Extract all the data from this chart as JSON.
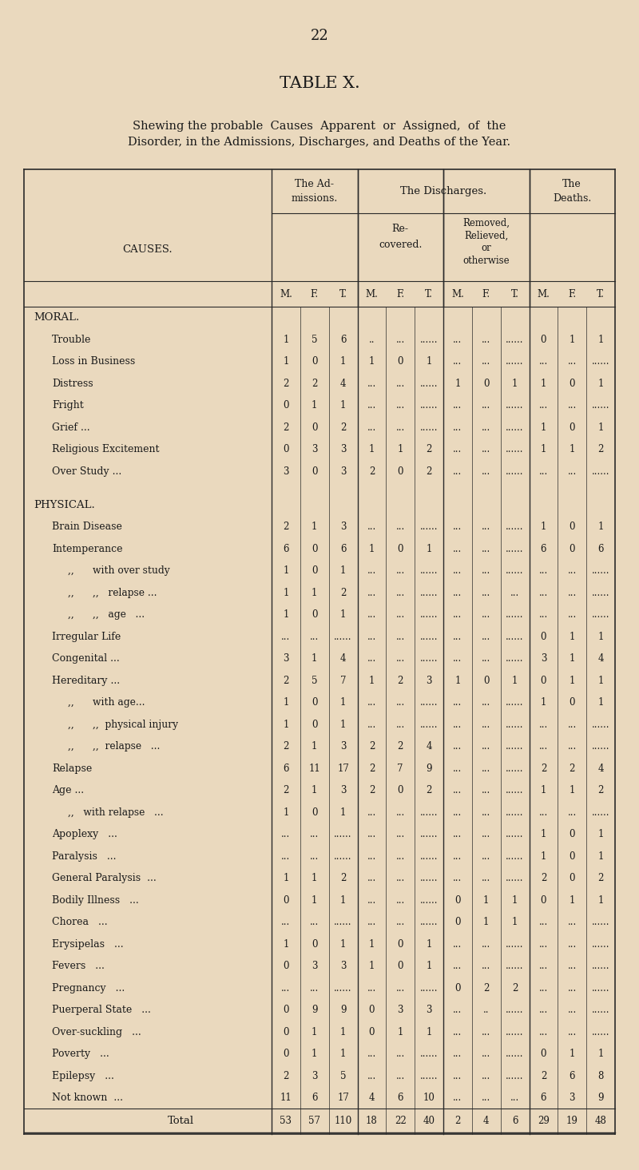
{
  "page_number": "22",
  "title": "TABLE X.",
  "subtitle_line1": "Shewing the probable  Causes  Apparent  or  Assigned,  of  the",
  "subtitle_line2": "Disorder, in the Admissions, Discharges, and Deaths of the Year.",
  "bg_color": "#EAD9BE",
  "text_color": "#1a1a1a",
  "rows": [
    {
      "label": "MORAL.",
      "indent": 0,
      "header": true,
      "vals": [
        "",
        "",
        "",
        "",
        "",
        "",
        "",
        "",
        "",
        "",
        "",
        ""
      ]
    },
    {
      "label": "Trouble",
      "indent": 1,
      "dots": "   ...      ...      ...",
      "vals": [
        "1",
        "5",
        "6",
        "..",
        "...",
        "......",
        "...",
        "...",
        "......",
        "0",
        "1",
        "1"
      ]
    },
    {
      "label": "Loss in Business",
      "indent": 1,
      "dots": "   ...      ...",
      "vals": [
        "1",
        "0",
        "1",
        "1",
        "0",
        "1",
        "...",
        "...",
        "......",
        "...",
        "...",
        "......"
      ]
    },
    {
      "label": "Distress",
      "indent": 1,
      "dots": "   ...      ...      ...",
      "vals": [
        "2",
        "2",
        "4",
        "...",
        "...",
        "......",
        "1",
        "0",
        "1",
        "1",
        "0",
        "1"
      ]
    },
    {
      "label": "Fright",
      "indent": 1,
      "dots": "   ..      ...      ...",
      "vals": [
        "0",
        "1",
        "1",
        "...",
        "...",
        "......",
        "...",
        "...",
        "......",
        "...",
        "...",
        "......"
      ]
    },
    {
      "label": "Grief ...",
      "indent": 1,
      "dots": "   ...      ...      ...",
      "vals": [
        "2",
        "0",
        "2",
        "...",
        "...",
        "......",
        "...",
        "...",
        "......",
        "1",
        "0",
        "1"
      ]
    },
    {
      "label": "Religious Excitement",
      "indent": 1,
      "dots": "   ...",
      "vals": [
        "0",
        "3",
        "3",
        "1",
        "1",
        "2",
        "...",
        "...",
        "......",
        "1",
        "1",
        "2"
      ]
    },
    {
      "label": "Over Study ...",
      "indent": 1,
      "dots": "   ...      ...",
      "vals": [
        "3",
        "0",
        "3",
        "2",
        "0",
        "2",
        "...",
        "...",
        "......",
        "...",
        "...",
        "......"
      ]
    },
    {
      "label": "",
      "indent": 0,
      "spacer": true,
      "vals": [
        "",
        "",
        "",
        "",
        "",
        "",
        "",
        "",
        "",
        "",
        "",
        ""
      ]
    },
    {
      "label": "PHYSICAL.",
      "indent": 0,
      "header": true,
      "vals": [
        "",
        "",
        "",
        "",
        "",
        "",
        "",
        "",
        "",
        "",
        "",
        ""
      ]
    },
    {
      "label": "Brain Disease",
      "indent": 1,
      "dots": "   ...      ...",
      "vals": [
        "2",
        "1",
        "3",
        "...",
        "...",
        "......",
        "...",
        "...",
        "......",
        "1",
        "0",
        "1"
      ]
    },
    {
      "label": "Intemperance",
      "indent": 1,
      "dots": "   ...      ...",
      "vals": [
        "6",
        "0",
        "6",
        "1",
        "0",
        "1",
        "...",
        "...",
        "......",
        "6",
        "0",
        "6"
      ]
    },
    {
      "label": ",,      with over study",
      "indent": 2,
      "dots": "",
      "vals": [
        "1",
        "0",
        "1",
        "...",
        "...",
        "......",
        "...",
        "...",
        "......",
        "...",
        "...",
        "......"
      ]
    },
    {
      "label": ",,      ,,   relapse ...",
      "indent": 2,
      "dots": "",
      "vals": [
        "1",
        "1",
        "2",
        "...",
        "...",
        "......",
        "...",
        "...",
        "...",
        "...",
        "...",
        "......"
      ]
    },
    {
      "label": ",,      ,,   age   ...",
      "indent": 2,
      "dots": "",
      "vals": [
        "1",
        "0",
        "1",
        "...",
        "...",
        "......",
        "...",
        "...",
        "......",
        "...",
        "...",
        "......"
      ]
    },
    {
      "label": "Irregular Life",
      "indent": 1,
      "dots": "   ...",
      "vals": [
        "...",
        "...",
        "......",
        "...",
        "...",
        "......",
        "...",
        "...",
        "......",
        "0",
        "1",
        "1"
      ]
    },
    {
      "label": "Congenital ...",
      "indent": 1,
      "dots": "   ...      ...",
      "vals": [
        "3",
        "1",
        "4",
        "...",
        "...",
        "......",
        "...",
        "...",
        "......",
        "3",
        "1",
        "4"
      ]
    },
    {
      "label": "Hereditary ...",
      "indent": 1,
      "dots": "   ...      ...",
      "vals": [
        "2",
        "5",
        "7",
        "1",
        "2",
        "3",
        "1",
        "0",
        "1",
        "0",
        "1",
        "1"
      ]
    },
    {
      "label": ",,      with age...",
      "indent": 2,
      "dots": "   ...",
      "vals": [
        "1",
        "0",
        "1",
        "...",
        "...",
        "......",
        "...",
        "...",
        "......",
        "1",
        "0",
        "1"
      ]
    },
    {
      "label": ",,      ,,  physical injury",
      "indent": 2,
      "dots": "",
      "vals": [
        "1",
        "0",
        "1",
        "...",
        "...",
        "......",
        "...",
        "...",
        "......",
        "...",
        "...",
        "......"
      ]
    },
    {
      "label": ",,      ,,  relapse   ...",
      "indent": 2,
      "dots": "",
      "vals": [
        "2",
        "1",
        "3",
        "2",
        "2",
        "4",
        "...",
        "...",
        "......",
        "...",
        "...",
        "......"
      ]
    },
    {
      "label": "Relapse",
      "indent": 1,
      "dots": "   ...      ...      ..",
      "vals": [
        "6",
        "11",
        "17",
        "2",
        "7",
        "9",
        "...",
        "...",
        "......",
        "2",
        "2",
        "4"
      ]
    },
    {
      "label": "Age ...",
      "indent": 1,
      "dots": "   ...      ...      ..",
      "vals": [
        "2",
        "1",
        "3",
        "2",
        "0",
        "2",
        "...",
        "...",
        "......",
        "1",
        "1",
        "2"
      ]
    },
    {
      "label": ",,   with relapse   ...",
      "indent": 2,
      "dots": "   ...",
      "vals": [
        "1",
        "0",
        "1",
        "...",
        "...",
        "......",
        "...",
        "...",
        "......",
        "...",
        "...",
        "......"
      ]
    },
    {
      "label": "Apoplexy   ...",
      "indent": 1,
      "dots": "   ...      ...",
      "vals": [
        "...",
        "...",
        "......",
        "...",
        "...",
        "......",
        "...",
        "...",
        "......",
        "1",
        "0",
        "1"
      ]
    },
    {
      "label": "Paralysis   ...",
      "indent": 1,
      "dots": "   ...      ...",
      "vals": [
        "...",
        "...",
        "......",
        "...",
        "...",
        "......",
        "...",
        "...",
        "......",
        "1",
        "0",
        "1"
      ]
    },
    {
      "label": "General Paralysis  ...",
      "indent": 1,
      "dots": "   .",
      "vals": [
        "1",
        "1",
        "2",
        "...",
        "...",
        "......",
        "...",
        "...",
        "......",
        "2",
        "0",
        "2"
      ]
    },
    {
      "label": "Bodily Illness   ...",
      "indent": 1,
      "dots": "   ...",
      "vals": [
        "0",
        "1",
        "1",
        "...",
        "...",
        "......",
        "0",
        "1",
        "1",
        "0",
        "1",
        "1"
      ]
    },
    {
      "label": "Chorea   ...",
      "indent": 1,
      "dots": "   ...      ...",
      "vals": [
        "...",
        "...",
        "......",
        "...",
        "...",
        "......",
        "0",
        "1",
        "1",
        "...",
        "...",
        "......"
      ]
    },
    {
      "label": "Erysipelas   ...",
      "indent": 1,
      "dots": "   ...",
      "vals": [
        "1",
        "0",
        "1",
        "1",
        "0",
        "1",
        "...",
        "...",
        "......",
        "...",
        "...",
        "......"
      ]
    },
    {
      "label": "Fevers   ...",
      "indent": 1,
      "dots": "   ...      ...",
      "vals": [
        "0",
        "3",
        "3",
        "1",
        "0",
        "1",
        "...",
        "...",
        "......",
        "...",
        "...",
        "......"
      ]
    },
    {
      "label": "Pregnancy   ...",
      "indent": 1,
      "dots": "   ...      ...",
      "vals": [
        "...",
        "...",
        "......",
        "...",
        "...",
        "......",
        "0",
        "2",
        "2",
        "...",
        "...",
        "......"
      ]
    },
    {
      "label": "Puerperal State   ...",
      "indent": 1,
      "dots": "   ...",
      "vals": [
        "0",
        "9",
        "9",
        "0",
        "3",
        "3",
        "...",
        "..",
        "......",
        "...",
        "...",
        "......"
      ]
    },
    {
      "label": "Over-suckling   ...",
      "indent": 1,
      "dots": "   ...",
      "vals": [
        "0",
        "1",
        "1",
        "0",
        "1",
        "1",
        "...",
        "...",
        "......",
        "...",
        "...",
        "......"
      ]
    },
    {
      "label": "Poverty   ...",
      "indent": 1,
      "dots": "   ...      ...",
      "vals": [
        "0",
        "1",
        "1",
        "...",
        "...",
        "......",
        "...",
        "...",
        "......",
        "0",
        "1",
        "1"
      ]
    },
    {
      "label": "Epilepsy   ...",
      "indent": 1,
      "dots": "   ...      ...",
      "vals": [
        "2",
        "3",
        "5",
        "...",
        "...",
        "......",
        "...",
        "...",
        "......",
        "2",
        "6",
        "8"
      ]
    },
    {
      "label": "Not known  ...",
      "indent": 1,
      "dots": "   ...      ...",
      "vals": [
        "11",
        "6",
        "17",
        "4",
        "6",
        "10",
        "...",
        "...",
        "...",
        "6",
        "3",
        "9"
      ]
    },
    {
      "label": "Total",
      "indent": 0,
      "total": true,
      "vals": [
        "53",
        "57",
        "110",
        "18",
        "22",
        "40",
        "2",
        "4",
        "6",
        "29",
        "19",
        "48"
      ]
    }
  ]
}
